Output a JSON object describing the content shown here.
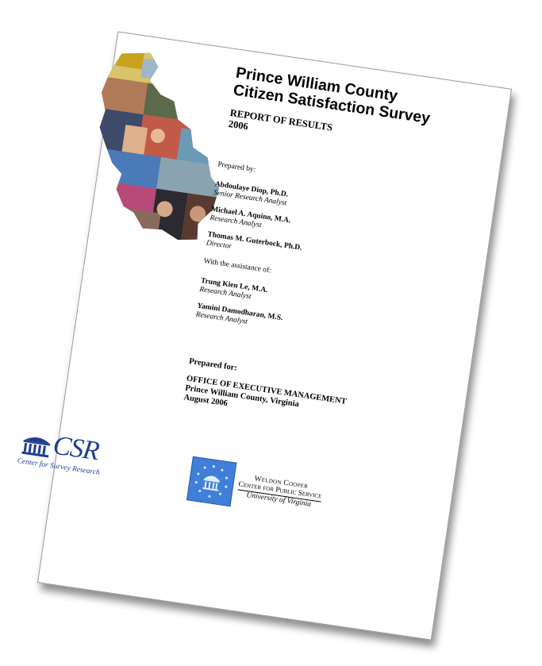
{
  "report": {
    "title_line1": "Prince William County",
    "title_line2": "Citizen Satisfaction Survey",
    "subtitle_line1": "REPORT OF RESULTS",
    "subtitle_line2": "2006",
    "prepared_by_label": "Prepared by:",
    "authors": [
      {
        "name": "Abdoulaye Diop, Ph.D.",
        "role": "Senior Research Analyst"
      },
      {
        "name": "Michael A. Aquino, M.A.",
        "role": "Research Analyst"
      },
      {
        "name": "Thomas M. Guterbock, Ph.D.",
        "role": "Director"
      }
    ],
    "assistance_label": "With the assistance of:",
    "assistants": [
      {
        "name": "Trung Kien Le, M.A.",
        "role": "Research Analyst"
      },
      {
        "name": "Yamini Damodharan, M.S.",
        "role": "Research Analyst"
      }
    ],
    "prepared_for_label": "Prepared for:",
    "client_line1": "OFFICE OF EXECUTIVE MANAGEMENT",
    "client_line2": "Prince William County, Virginia",
    "client_line3": "August 2006"
  },
  "logos": {
    "csr_text": "CSR",
    "csr_subtitle": "Center for Survey Research",
    "wc_line1": "Weldon Cooper",
    "wc_line2": "Center for Public Service",
    "wc_line3": "University of Virginia"
  },
  "colors": {
    "csr_blue": "#1f3f8e",
    "wc_blue": "#3f7fd9"
  },
  "icons": {
    "collage": "county-map-photo-collage",
    "csr_mark": "rotunda-icon",
    "wc_mark": "rotunda-stars-icon"
  }
}
